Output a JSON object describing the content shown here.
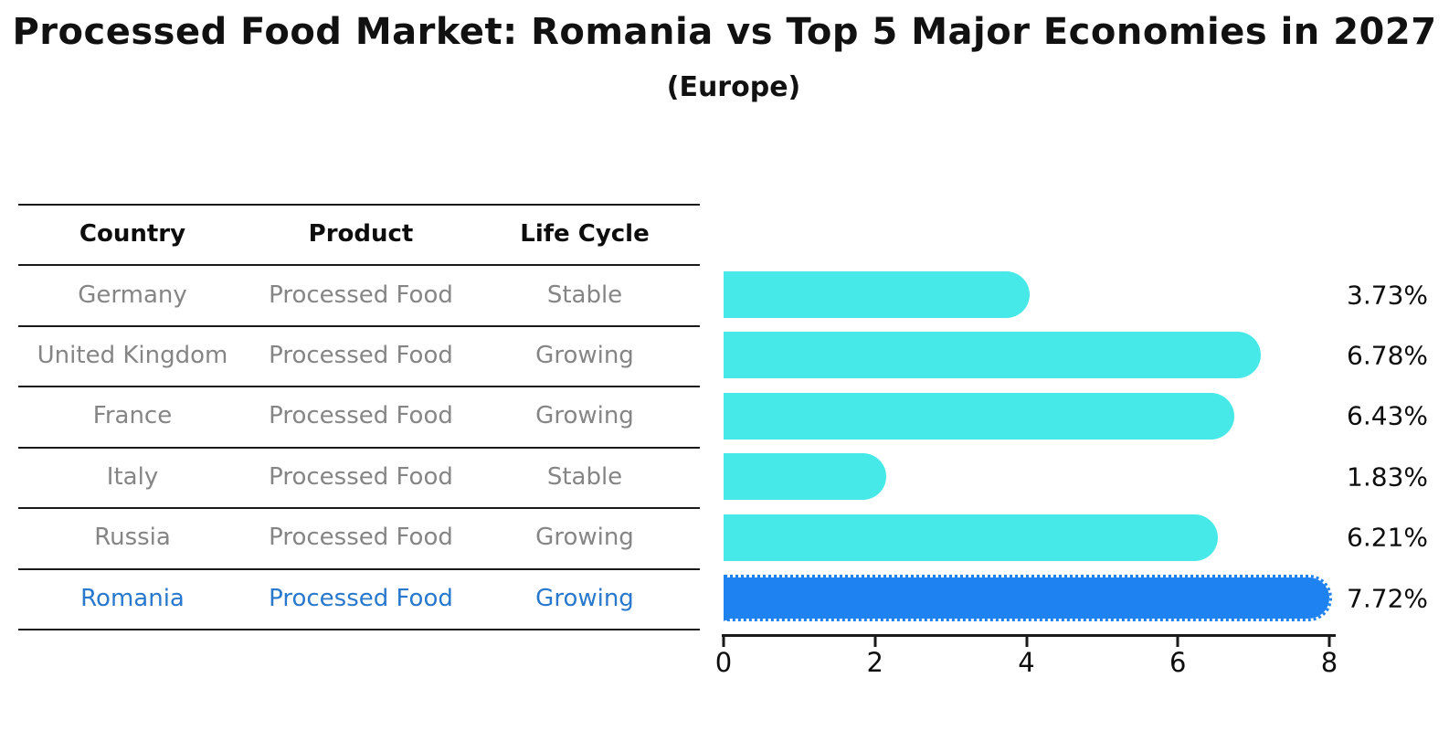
{
  "header": {
    "title": "Processed Food Market: Romania vs Top 5 Major Economies in 2027",
    "subtitle": "(Europe)"
  },
  "table": {
    "columns": [
      "Country",
      "Product",
      "Life Cycle"
    ],
    "rows": [
      {
        "country": "Germany",
        "product": "Processed Food",
        "life_cycle": "Stable",
        "highlight": false
      },
      {
        "country": "United Kingdom",
        "product": "Processed Food",
        "life_cycle": "Growing",
        "highlight": false
      },
      {
        "country": "France",
        "product": "Processed Food",
        "life_cycle": "Growing",
        "highlight": false
      },
      {
        "country": "Italy",
        "product": "Processed Food",
        "life_cycle": "Stable",
        "highlight": false
      },
      {
        "country": "Russia",
        "product": "Processed Food",
        "life_cycle": "Growing",
        "highlight": false
      },
      {
        "country": "Romania",
        "product": "Processed Food",
        "life_cycle": "Growing",
        "highlight": true
      }
    ]
  },
  "chart_data": {
    "type": "bar",
    "orientation": "horizontal",
    "title": "Processed Food Market: Romania vs Top 5 Major Economies in 2027",
    "subtitle": "(Europe)",
    "categories": [
      "Germany",
      "United Kingdom",
      "France",
      "Italy",
      "Russia",
      "Romania"
    ],
    "values": [
      3.73,
      6.78,
      6.43,
      1.83,
      6.21,
      7.72
    ],
    "value_labels": [
      "3.73%",
      "6.78%",
      "6.43%",
      "1.83%",
      "6.21%",
      "7.72%"
    ],
    "highlight_index": 5,
    "xlim": [
      0,
      8
    ],
    "x_ticks": [
      "0",
      "2",
      "4",
      "6",
      "8"
    ],
    "grid": false,
    "legend": false
  },
  "colors": {
    "bar": "#46e8e8",
    "highlight_bar": "#1e82f0",
    "highlight_text": "#2878ce",
    "table_text": "#858585",
    "axis_text": "#0d0d0d"
  }
}
